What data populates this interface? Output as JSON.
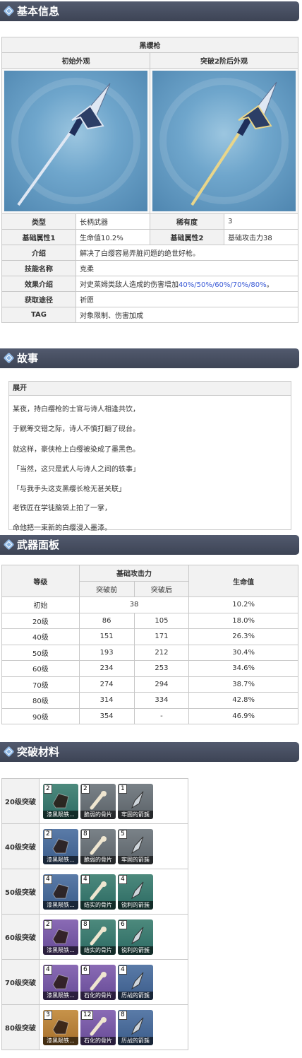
{
  "sections": {
    "basic": "基本信息",
    "story": "故事",
    "panel": "武器面板",
    "ascension": "突破材料"
  },
  "weapon": {
    "name": "黑缨枪",
    "look_initial": "初始外观",
    "look_ascended": "突破2阶后外观",
    "rows": {
      "type_k": "类型",
      "type_v": "长柄武器",
      "rarity_k": "稀有度",
      "rarity_v": "3",
      "attr1_k": "基础属性1",
      "attr1_v": "生命值10.2%",
      "attr2_k": "基础属性2",
      "attr2_v": "基础攻击力38",
      "intro_k": "介绍",
      "intro_v": "解决了白缨容易弄脏问题的绝世好枪。",
      "skill_k": "技能名称",
      "skill_v": "克柔",
      "effect_k": "效果介绍",
      "effect_pre": "对史莱姆类敌人造成的伤害增加",
      "effect_hl": "40%/50%/60%/70%/80%",
      "effect_post": "。",
      "source_k": "获取途径",
      "source_v": "祈愿",
      "tag_k": "TAG",
      "tag_v": "对象限制、伤害加成"
    },
    "colors": {
      "shaft": "#1f2f5a",
      "blade": "#dfe7f3",
      "gold": "#e8d58a"
    }
  },
  "story": {
    "expand": "展开",
    "lines": [
      "某夜，持白缨枪的士官与诗人相逢共饮，",
      "于觥筹交错之际，诗人不慎打翻了砚台。",
      "就这样，豪侠枪上白缨被染成了墨黑色。",
      "「当然，这只是武人与诗人之间的轶事」",
      "「与我手头这支黑缨长枪无甚关联」",
      "老铁匠在学徒脑袋上拍了一掌，",
      "命他把一束新的白缨浸入墨漆。"
    ]
  },
  "stats": {
    "h_level": "等级",
    "h_atk": "基础攻击力",
    "h_before": "突破前",
    "h_after": "突破后",
    "h_hp": "生命值",
    "initial": {
      "level": "初始",
      "atk": "38",
      "hp": "10.2%"
    },
    "rows": [
      {
        "level": "20级",
        "before": "86",
        "after": "105",
        "hp": "18.0%"
      },
      {
        "level": "40级",
        "before": "151",
        "after": "171",
        "hp": "26.3%"
      },
      {
        "level": "50级",
        "before": "193",
        "after": "212",
        "hp": "30.4%"
      },
      {
        "level": "60级",
        "before": "234",
        "after": "253",
        "hp": "34.6%"
      },
      {
        "level": "70级",
        "before": "274",
        "after": "294",
        "hp": "38.7%"
      },
      {
        "level": "80级",
        "before": "314",
        "after": "334",
        "hp": "42.8%"
      },
      {
        "level": "90级",
        "before": "354",
        "after": "-",
        "hp": "46.9%"
      }
    ]
  },
  "ascension": [
    {
      "level": "20级突破",
      "mats": [
        {
          "count": "2",
          "name": "漆黑陨铁...",
          "rarity": "r-g",
          "icon": "chunk-icon"
        },
        {
          "count": "2",
          "name": "脆弱的骨片",
          "rarity": "r-gr",
          "icon": "bone-icon"
        },
        {
          "count": "1",
          "name": "牢固的箭簇",
          "rarity": "r-gr",
          "icon": "arrowhead-icon"
        }
      ]
    },
    {
      "level": "40级突破",
      "mats": [
        {
          "count": "2",
          "name": "漆黑陨铁...",
          "rarity": "r-b",
          "icon": "chunk-icon"
        },
        {
          "count": "8",
          "name": "脆弱的骨片",
          "rarity": "r-gr",
          "icon": "bone-icon"
        },
        {
          "count": "5",
          "name": "牢固的箭簇",
          "rarity": "r-gr",
          "icon": "arrowhead-icon"
        }
      ]
    },
    {
      "level": "50级突破",
      "mats": [
        {
          "count": "4",
          "name": "漆黑陨铁...",
          "rarity": "r-b",
          "icon": "chunk-icon"
        },
        {
          "count": "4",
          "name": "结实的骨片",
          "rarity": "r-g",
          "icon": "bone-icon"
        },
        {
          "count": "4",
          "name": "锐利的箭簇",
          "rarity": "r-g",
          "icon": "arrowhead-icon"
        }
      ]
    },
    {
      "level": "60级突破",
      "mats": [
        {
          "count": "2",
          "name": "漆黑陨铁...",
          "rarity": "r-p",
          "icon": "chunk-icon"
        },
        {
          "count": "8",
          "name": "结实的骨片",
          "rarity": "r-g",
          "icon": "bone-icon"
        },
        {
          "count": "6",
          "name": "锐利的箭簇",
          "rarity": "r-g",
          "icon": "arrowhead-icon"
        }
      ]
    },
    {
      "level": "70级突破",
      "mats": [
        {
          "count": "4",
          "name": "漆黑陨铁...",
          "rarity": "r-p",
          "icon": "chunk-icon"
        },
        {
          "count": "6",
          "name": "石化的骨片",
          "rarity": "r-p",
          "icon": "bone-icon"
        },
        {
          "count": "4",
          "name": "历战的箭簇",
          "rarity": "r-b",
          "icon": "arrowhead-icon"
        }
      ]
    },
    {
      "level": "80级突破",
      "mats": [
        {
          "count": "3",
          "name": "漆黑陨铁...",
          "rarity": "r-o",
          "icon": "chunk-icon"
        },
        {
          "count": "12",
          "name": "石化的骨片",
          "rarity": "r-p",
          "icon": "bone-icon"
        },
        {
          "count": "8",
          "name": "历战的箭簇",
          "rarity": "r-b",
          "icon": "arrowhead-icon"
        }
      ]
    }
  ]
}
